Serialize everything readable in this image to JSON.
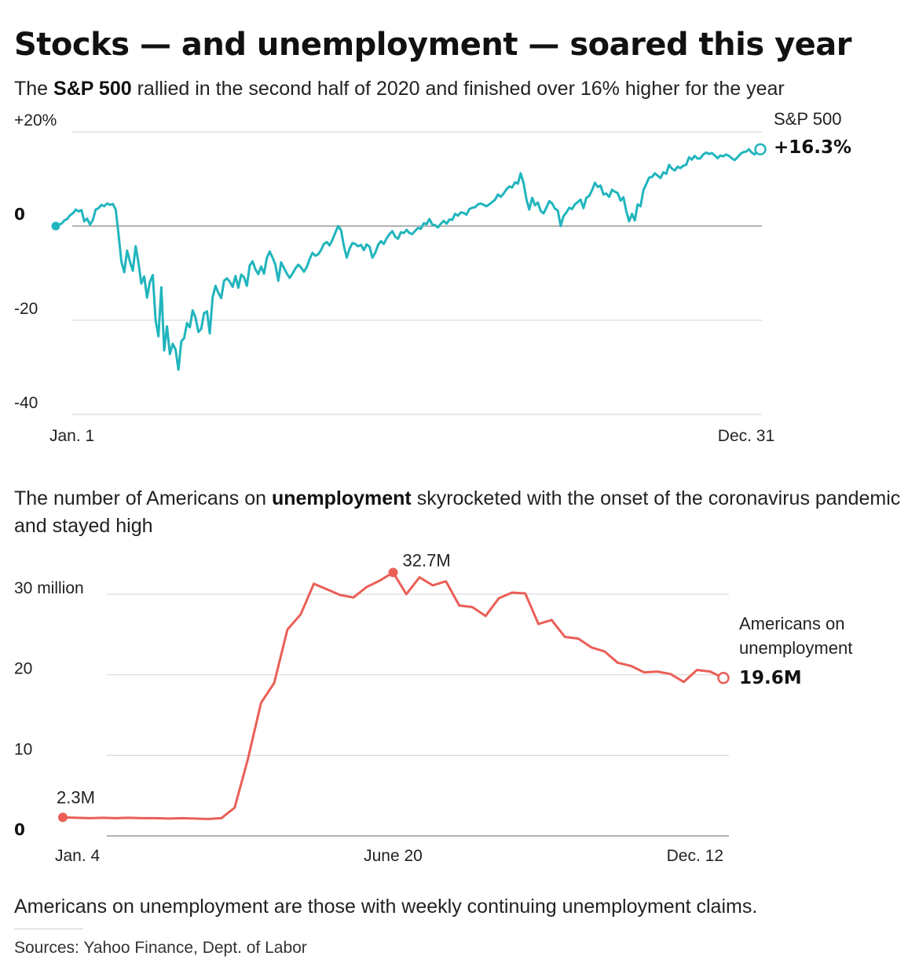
{
  "title": "Stocks — and unemployment — soared this year",
  "subtitle1": {
    "pre": "The ",
    "bold": "S&P 500",
    "post": " rallied in the second half of 2020 and finished over 16% higher for the year"
  },
  "subtitle2": {
    "pre": "The number of Americans on ",
    "bold": "unemployment",
    "post": " skyrocketed with the onset of the coronavirus pandemic and stayed high"
  },
  "note": "Americans on unemployment are those with weekly continuing unemployment claims.",
  "sources": "Sources: Yahoo Finance, Dept. of Labor",
  "colors": {
    "sp500": "#21b5bd",
    "unemployment": "#ea5f57",
    "grid": "#d9d9d9",
    "baseline": "#9a9a9a"
  },
  "chart_data": [
    {
      "type": "line",
      "series": [
        {
          "name": "S&P 500",
          "values": [
            0.0,
            0.3,
            0.5,
            1.2,
            1.5,
            2.3,
            2.7,
            3.5,
            3.1,
            3.4,
            1.0,
            1.6,
            0.3,
            1.3,
            3.5,
            3.8,
            4.5,
            4.2,
            4.8,
            4.5,
            4.7,
            3.5,
            -1.7,
            -7.5,
            -9.8,
            -5.2,
            -7.5,
            -9.5,
            -4.3,
            -7.8,
            -12.2,
            -10.7,
            -15.2,
            -11.9,
            -10.4,
            -20.0,
            -23.4,
            -13.0,
            -26.4,
            -21.3,
            -27.2,
            -25.0,
            -26.2,
            -30.5,
            -24.5,
            -23.8,
            -20.6,
            -21.5,
            -17.9,
            -19.4,
            -22.5,
            -21.8,
            -18.5,
            -18.1,
            -22.8,
            -15.1,
            -12.7,
            -14.2,
            -15.3,
            -11.6,
            -11.1,
            -11.8,
            -12.9,
            -10.6,
            -13.1,
            -10.3,
            -10.9,
            -12.7,
            -8.4,
            -7.5,
            -9.2,
            -10.2,
            -8.6,
            -10.1,
            -6.8,
            -5.4,
            -6.7,
            -8.2,
            -11.6,
            -7.7,
            -8.9,
            -10.1,
            -11.0,
            -10.1,
            -9.0,
            -8.2,
            -8.8,
            -9.7,
            -8.7,
            -7.0,
            -5.7,
            -6.3,
            -6.0,
            -5.1,
            -3.8,
            -3.4,
            -4.1,
            -2.9,
            -1.4,
            0.0,
            -0.9,
            -4.2,
            -6.7,
            -4.8,
            -3.6,
            -3.8,
            -4.3,
            -4.0,
            -5.1,
            -3.9,
            -4.4,
            -6.7,
            -5.7,
            -4.0,
            -3.2,
            -3.8,
            -2.6,
            -1.7,
            -1.1,
            -2.3,
            -2.7,
            -1.3,
            -1.5,
            -0.8,
            -1.5,
            -1.7,
            -1.0,
            -0.4,
            -0.6,
            0.6,
            0.4,
            1.5,
            0.3,
            0.2,
            -0.3,
            0.5,
            1.1,
            0.5,
            1.4,
            1.3,
            2.6,
            2.2,
            2.9,
            2.8,
            2.4,
            3.6,
            3.9,
            4.0,
            4.6,
            4.8,
            4.5,
            4.2,
            4.6,
            5.1,
            5.6,
            6.7,
            6.2,
            6.9,
            7.8,
            8.4,
            8.2,
            9.3,
            9.0,
            11.2,
            9.1,
            5.7,
            3.5,
            6.0,
            4.4,
            5.0,
            3.2,
            2.7,
            3.9,
            5.3,
            4.8,
            3.7,
            3.3,
            0.0,
            2.1,
            2.9,
            3.9,
            3.6,
            4.6,
            5.1,
            5.6,
            3.8,
            6.0,
            6.4,
            7.6,
            9.2,
            8.3,
            8.6,
            6.7,
            6.9,
            6.2,
            7.7,
            7.3,
            7.0,
            5.4,
            6.1,
            3.2,
            1.0,
            2.6,
            1.2,
            4.6,
            4.2,
            7.6,
            8.9,
            10.3,
            10.4,
            11.2,
            10.7,
            10.2,
            11.4,
            11.1,
            13.0,
            12.2,
            11.8,
            12.6,
            12.3,
            12.8,
            13.0,
            14.6,
            14.1,
            14.9,
            14.3,
            14.4,
            15.2,
            15.6,
            15.3,
            15.5,
            15.0,
            14.4,
            15.0,
            14.8,
            15.2,
            14.9,
            14.4,
            14.0,
            14.6,
            15.3,
            15.7,
            15.8,
            16.3,
            15.6,
            15.2,
            15.9,
            16.3
          ]
        }
      ],
      "x_labels": [
        "Jan. 1",
        "Dec. 31"
      ],
      "ylim": [
        -40,
        20
      ],
      "yticks": [
        20,
        0,
        -20,
        -40
      ],
      "ytick_labels": [
        "+20%",
        "0",
        "-20",
        "-40"
      ],
      "grid": true,
      "end_label": {
        "name": "S&P 500",
        "value": "+16.3%"
      }
    },
    {
      "type": "line",
      "series": [
        {
          "name": "Americans on unemployment",
          "values": [
            2.3,
            2.25,
            2.2,
            2.25,
            2.2,
            2.25,
            2.2,
            2.2,
            2.15,
            2.2,
            2.15,
            2.1,
            2.2,
            3.5,
            9.5,
            16.5,
            19.0,
            25.6,
            27.5,
            31.3,
            30.6,
            29.9,
            29.6,
            30.9,
            31.7,
            32.7,
            30.0,
            32.1,
            31.1,
            31.6,
            28.6,
            28.4,
            27.3,
            29.5,
            30.2,
            30.1,
            26.3,
            26.8,
            24.7,
            24.5,
            23.4,
            22.9,
            21.5,
            21.1,
            20.3,
            20.4,
            20.1,
            19.1,
            20.6,
            20.4,
            19.6
          ]
        }
      ],
      "x_labels": [
        "Jan. 4",
        "June 20",
        "Dec. 12"
      ],
      "ylim": [
        0,
        34
      ],
      "yticks": [
        30,
        20,
        10,
        0
      ],
      "ytick_labels": [
        "30 million",
        "20",
        "10",
        "0"
      ],
      "grid": true,
      "annotations": {
        "start": "2.3M",
        "peak": "32.7M",
        "end_value": "19.6M",
        "end_label_line1": "Americans on",
        "end_label_line2": "unemployment"
      }
    }
  ]
}
